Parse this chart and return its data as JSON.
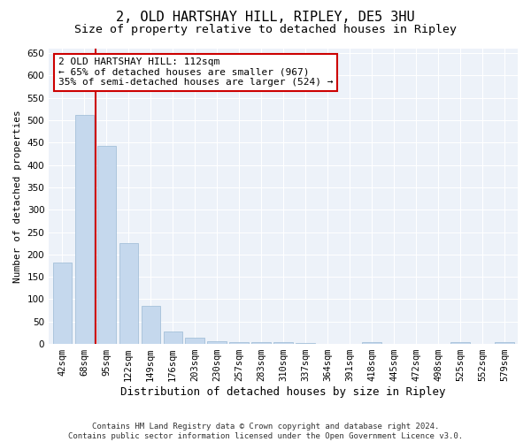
{
  "title": "2, OLD HARTSHAY HILL, RIPLEY, DE5 3HU",
  "subtitle": "Size of property relative to detached houses in Ripley",
  "xlabel": "Distribution of detached houses by size in Ripley",
  "ylabel": "Number of detached properties",
  "bar_color": "#c5d8ed",
  "bar_edge_color": "#9bbad4",
  "background_color": "#edf2f9",
  "grid_color": "#ffffff",
  "categories": [
    "42sqm",
    "68sqm",
    "95sqm",
    "122sqm",
    "149sqm",
    "176sqm",
    "203sqm",
    "230sqm",
    "257sqm",
    "283sqm",
    "310sqm",
    "337sqm",
    "364sqm",
    "391sqm",
    "418sqm",
    "445sqm",
    "472sqm",
    "498sqm",
    "525sqm",
    "552sqm",
    "579sqm"
  ],
  "values": [
    181,
    511,
    443,
    225,
    85,
    28,
    14,
    7,
    5,
    5,
    5,
    3,
    0,
    0,
    5,
    0,
    0,
    0,
    5,
    0,
    5
  ],
  "ylim": [
    0,
    660
  ],
  "yticks": [
    0,
    50,
    100,
    150,
    200,
    250,
    300,
    350,
    400,
    450,
    500,
    550,
    600,
    650
  ],
  "vline_color": "#cc0000",
  "vline_x_index": 2,
  "annotation_text": "2 OLD HARTSHAY HILL: 112sqm\n← 65% of detached houses are smaller (967)\n35% of semi-detached houses are larger (524) →",
  "annotation_box_color": "#ffffff",
  "annotation_box_edge_color": "#cc0000",
  "footer_text": "Contains HM Land Registry data © Crown copyright and database right 2024.\nContains public sector information licensed under the Open Government Licence v3.0.",
  "title_fontsize": 11,
  "subtitle_fontsize": 9.5,
  "xlabel_fontsize": 9,
  "ylabel_fontsize": 8,
  "annotation_fontsize": 8,
  "tick_fontsize": 7.5,
  "footer_fontsize": 6.5
}
